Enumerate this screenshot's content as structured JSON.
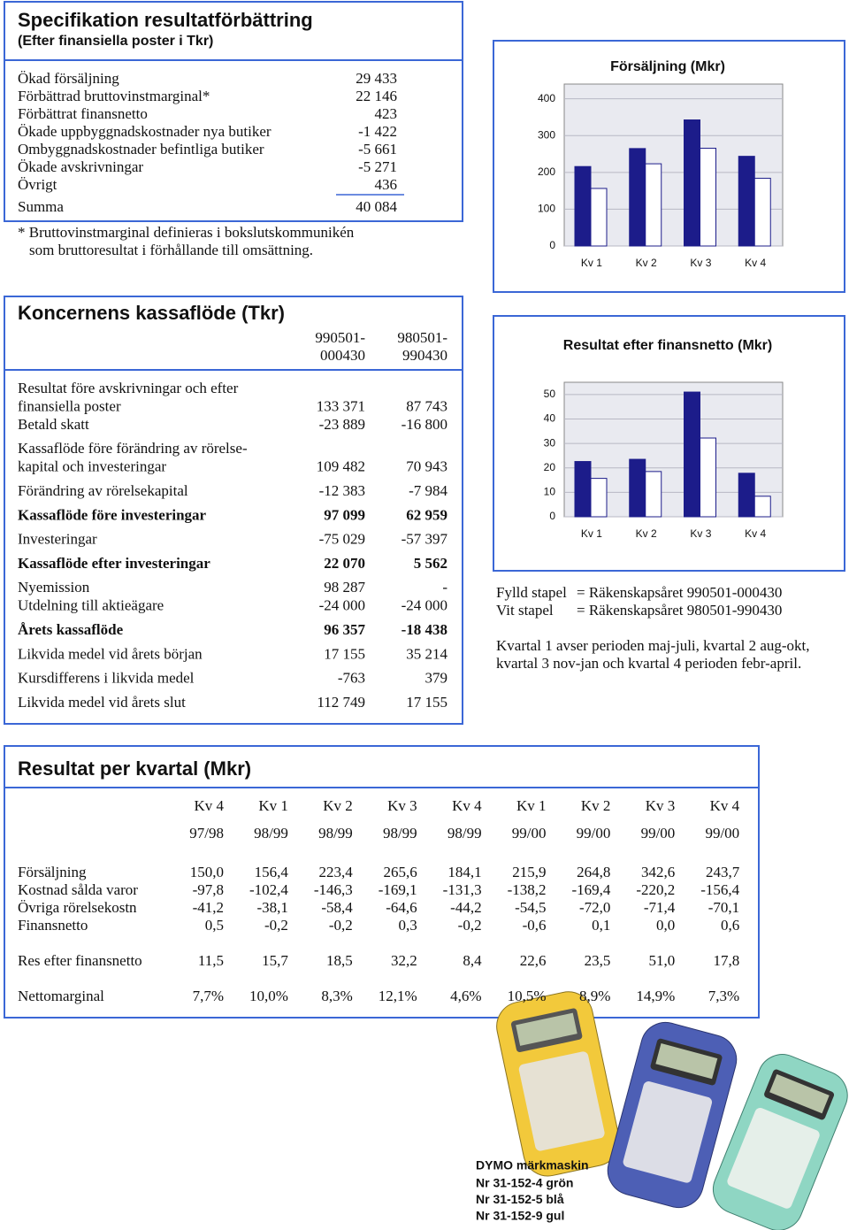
{
  "spec": {
    "title": "Specifikation resultatförbättring",
    "subtitle": "(Efter finansiella poster i Tkr)",
    "rows": [
      [
        "Ökad försäljning",
        "29 433"
      ],
      [
        "Förbättrad bruttovinstmarginal*",
        "22 146"
      ],
      [
        "Förbättrat finansnetto",
        "423"
      ],
      [
        "Ökade uppbyggnadskostnader nya butiker",
        "-1 422"
      ],
      [
        "Ombyggnadskostnader befintliga butiker",
        "-5 661"
      ],
      [
        "Ökade avskrivningar",
        "-5 271"
      ],
      [
        "Övrigt",
        "436"
      ]
    ],
    "total": [
      "Summa",
      "40 084"
    ],
    "note": [
      "* Bruttovinstmarginal definieras i bokslutskommunikén",
      "som bruttoresultat i förhållande till omsättning."
    ]
  },
  "cashflow": {
    "title": "Koncernens kassaflöde (Tkr)",
    "headers": [
      [
        "990501-",
        "000430"
      ],
      [
        "980501-",
        "990430"
      ]
    ],
    "groups": [
      [
        {
          "label": [
            "Resultat före avskrivningar och efter",
            "finansiella poster"
          ],
          "values": [
            "133 371",
            "87 743"
          ]
        },
        {
          "label": [
            "Betald skatt"
          ],
          "values": [
            "-23 889",
            "-16 800"
          ]
        }
      ],
      [
        {
          "label": [
            "Kassaflöde före förändring av rörelse-",
            "kapital och investeringar"
          ],
          "values": [
            "109 482",
            "70 943"
          ]
        }
      ],
      [
        {
          "label": [
            "Förändring av rörelsekapital"
          ],
          "values": [
            "-12 383",
            "-7 984"
          ]
        }
      ],
      [
        {
          "label": [
            "Kassaflöde före investeringar"
          ],
          "values": [
            "97 099",
            "62 959"
          ],
          "bold": true
        }
      ],
      [
        {
          "label": [
            "Investeringar"
          ],
          "values": [
            "-75 029",
            "-57 397"
          ]
        }
      ],
      [
        {
          "label": [
            "Kassaflöde efter investeringar"
          ],
          "values": [
            "22 070",
            "5 562"
          ],
          "bold": true
        }
      ],
      [
        {
          "label": [
            "Nyemission"
          ],
          "values": [
            "98 287",
            "-"
          ]
        },
        {
          "label": [
            "Utdelning till aktieägare"
          ],
          "values": [
            "-24 000",
            "-24 000"
          ]
        }
      ],
      [
        {
          "label": [
            "Årets kassaflöde"
          ],
          "values": [
            "96 357",
            "-18 438"
          ],
          "bold": true
        }
      ],
      [
        {
          "label": [
            "Likvida medel vid årets början"
          ],
          "values": [
            "17 155",
            "35 214"
          ]
        }
      ],
      [
        {
          "label": [
            "Kursdifferens i likvida medel"
          ],
          "values": [
            "-763",
            "379"
          ]
        }
      ],
      [
        {
          "label": [
            "Likvida medel vid årets slut"
          ],
          "values": [
            "112 749",
            "17 155"
          ]
        }
      ]
    ]
  },
  "chart_data": [
    {
      "type": "bar",
      "title": "Försäljning (Mkr)",
      "categories": [
        "Kv 1",
        "Kv 2",
        "Kv 3",
        "Kv 4"
      ],
      "series": [
        {
          "color": "#1c1c8a",
          "values": [
            215.9,
            264.8,
            342.6,
            243.7
          ]
        },
        {
          "color": "#ffffff",
          "values": [
            156.4,
            223.4,
            265.6,
            184.1
          ]
        }
      ],
      "ylim": [
        0,
        440
      ],
      "yticks": [
        0,
        100,
        200,
        300,
        400
      ],
      "grid": true
    },
    {
      "type": "bar",
      "title": "Resultat efter finansnetto (Mkr)",
      "categories": [
        "Kv 1",
        "Kv 2",
        "Kv 3",
        "Kv 4"
      ],
      "series": [
        {
          "color": "#1c1c8a",
          "values": [
            22.6,
            23.5,
            51.0,
            17.8
          ]
        },
        {
          "color": "#ffffff",
          "values": [
            15.7,
            18.5,
            32.2,
            8.4
          ]
        }
      ],
      "ylim": [
        0,
        55
      ],
      "yticks": [
        0,
        10,
        20,
        30,
        40,
        50
      ],
      "grid": true
    }
  ],
  "notes": {
    "legend": [
      [
        "Fylld stapel",
        "= Räkenskapsåret 990501-000430"
      ],
      [
        "Vit stapel",
        "= Räkenskapsåret 980501-990430"
      ]
    ],
    "quarter": [
      "Kvartal 1 avser perioden maj-juli, kvartal 2 aug-okt,",
      "kvartal 3 nov-jan och kvartal 4 perioden febr-april."
    ]
  },
  "quarterly": {
    "title": "Resultat per kvartal (Mkr)",
    "quarters": [
      "Kv 4",
      "Kv 1",
      "Kv 2",
      "Kv 3",
      "Kv 4",
      "Kv 1",
      "Kv 2",
      "Kv 3",
      "Kv 4"
    ],
    "years": [
      "97/98",
      "98/99",
      "98/99",
      "98/99",
      "98/99",
      "99/00",
      "99/00",
      "99/00",
      "99/00"
    ],
    "groups": [
      [
        {
          "label": "Försäljning",
          "values": [
            "150,0",
            "156,4",
            "223,4",
            "265,6",
            "184,1",
            "215,9",
            "264,8",
            "342,6",
            "243,7"
          ]
        },
        {
          "label": "Kostnad sålda varor",
          "values": [
            "-97,8",
            "-102,4",
            "-146,3",
            "-169,1",
            "-131,3",
            "-138,2",
            "-169,4",
            "-220,2",
            "-156,4"
          ]
        },
        {
          "label": "Övriga rörelsekostn",
          "values": [
            "-41,2",
            "-38,1",
            "-58,4",
            "-64,6",
            "-44,2",
            "-54,5",
            "-72,0",
            "-71,4",
            "-70,1"
          ]
        },
        {
          "label": "Finansnetto",
          "values": [
            "0,5",
            "-0,2",
            "-0,2",
            "0,3",
            "-0,2",
            "-0,6",
            "0,1",
            "0,0",
            "0,6"
          ]
        }
      ],
      [
        {
          "label": "Res efter finansnetto",
          "values": [
            "11,5",
            "15,7",
            "18,5",
            "32,2",
            "8,4",
            "22,6",
            "23,5",
            "51,0",
            "17,8"
          ]
        }
      ],
      [
        {
          "label": "Nettomarginal",
          "values": [
            "7,7%",
            "10,0%",
            "8,3%",
            "12,1%",
            "4,6%",
            "10,5%",
            "8,9%",
            "14,9%",
            "7,3%"
          ]
        }
      ]
    ]
  },
  "product": {
    "title": "DYMO märkmaskin",
    "items": [
      "Nr 31-152-4 grön",
      "Nr 31-152-5 blå",
      "Nr 31-152-9 gul"
    ]
  }
}
